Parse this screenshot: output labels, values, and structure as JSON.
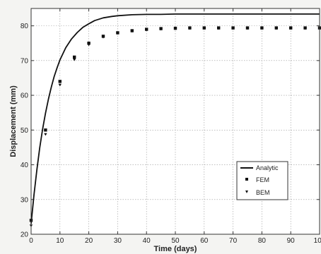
{
  "chart_data": {
    "type": "line",
    "xlabel": "Time (days)",
    "ylabel": "Displacement (mm)",
    "xlim": [
      0,
      100
    ],
    "ylim": [
      20,
      85
    ],
    "xticks": [
      0,
      10,
      20,
      30,
      40,
      50,
      60,
      70,
      80,
      90,
      100
    ],
    "yticks": [
      20,
      30,
      40,
      50,
      60,
      70,
      80
    ],
    "xtick_labels": [
      "0",
      "10",
      "20",
      "30",
      "40",
      "50",
      "60",
      "70",
      "80",
      "90",
      "100"
    ],
    "ytick_labels": [
      "20",
      "30",
      "40",
      "50",
      "60",
      "70",
      "80"
    ],
    "grid": true,
    "legend_position": "lower-right",
    "series": [
      {
        "name": "Analytic",
        "style": "line",
        "x": [
          0,
          1,
          2,
          3,
          4,
          5,
          6,
          7,
          8,
          9,
          10,
          12,
          14,
          16,
          18,
          20,
          22,
          25,
          28,
          30,
          35,
          40,
          45,
          50,
          55,
          60,
          70,
          80,
          90,
          100
        ],
        "y": [
          23.0,
          31.4,
          38.6,
          44.9,
          50.3,
          54.9,
          58.9,
          62.4,
          65.4,
          67.9,
          70.2,
          73.7,
          76.2,
          78.1,
          79.6,
          80.6,
          81.5,
          82.3,
          82.7,
          82.9,
          83.2,
          83.3,
          83.3,
          83.4,
          83.4,
          83.4,
          83.4,
          83.4,
          83.4,
          83.4
        ]
      },
      {
        "name": "FEM",
        "style": "square",
        "x": [
          0,
          5,
          10,
          15,
          20,
          25,
          30,
          35,
          40,
          45,
          50,
          55,
          60,
          65,
          70,
          75,
          80,
          85,
          90,
          95,
          100
        ],
        "y": [
          24.0,
          50.0,
          64.0,
          71.0,
          75.0,
          77.0,
          78.0,
          78.6,
          79.0,
          79.2,
          79.3,
          79.4,
          79.4,
          79.4,
          79.4,
          79.4,
          79.4,
          79.4,
          79.4,
          79.4,
          79.4
        ]
      },
      {
        "name": "BEM",
        "style": "triangle",
        "x": [
          0,
          5,
          10,
          15,
          20,
          25,
          30,
          35,
          40,
          45,
          50,
          55,
          60,
          65,
          70,
          75,
          80,
          85,
          90,
          95,
          100
        ],
        "y": [
          22.5,
          48.8,
          63.0,
          70.3,
          74.6,
          76.8,
          77.9,
          78.5,
          78.9,
          79.1,
          79.2,
          79.3,
          79.3,
          79.3,
          79.3,
          79.3,
          79.3,
          79.3,
          79.3,
          79.3,
          79.3
        ]
      }
    ]
  }
}
